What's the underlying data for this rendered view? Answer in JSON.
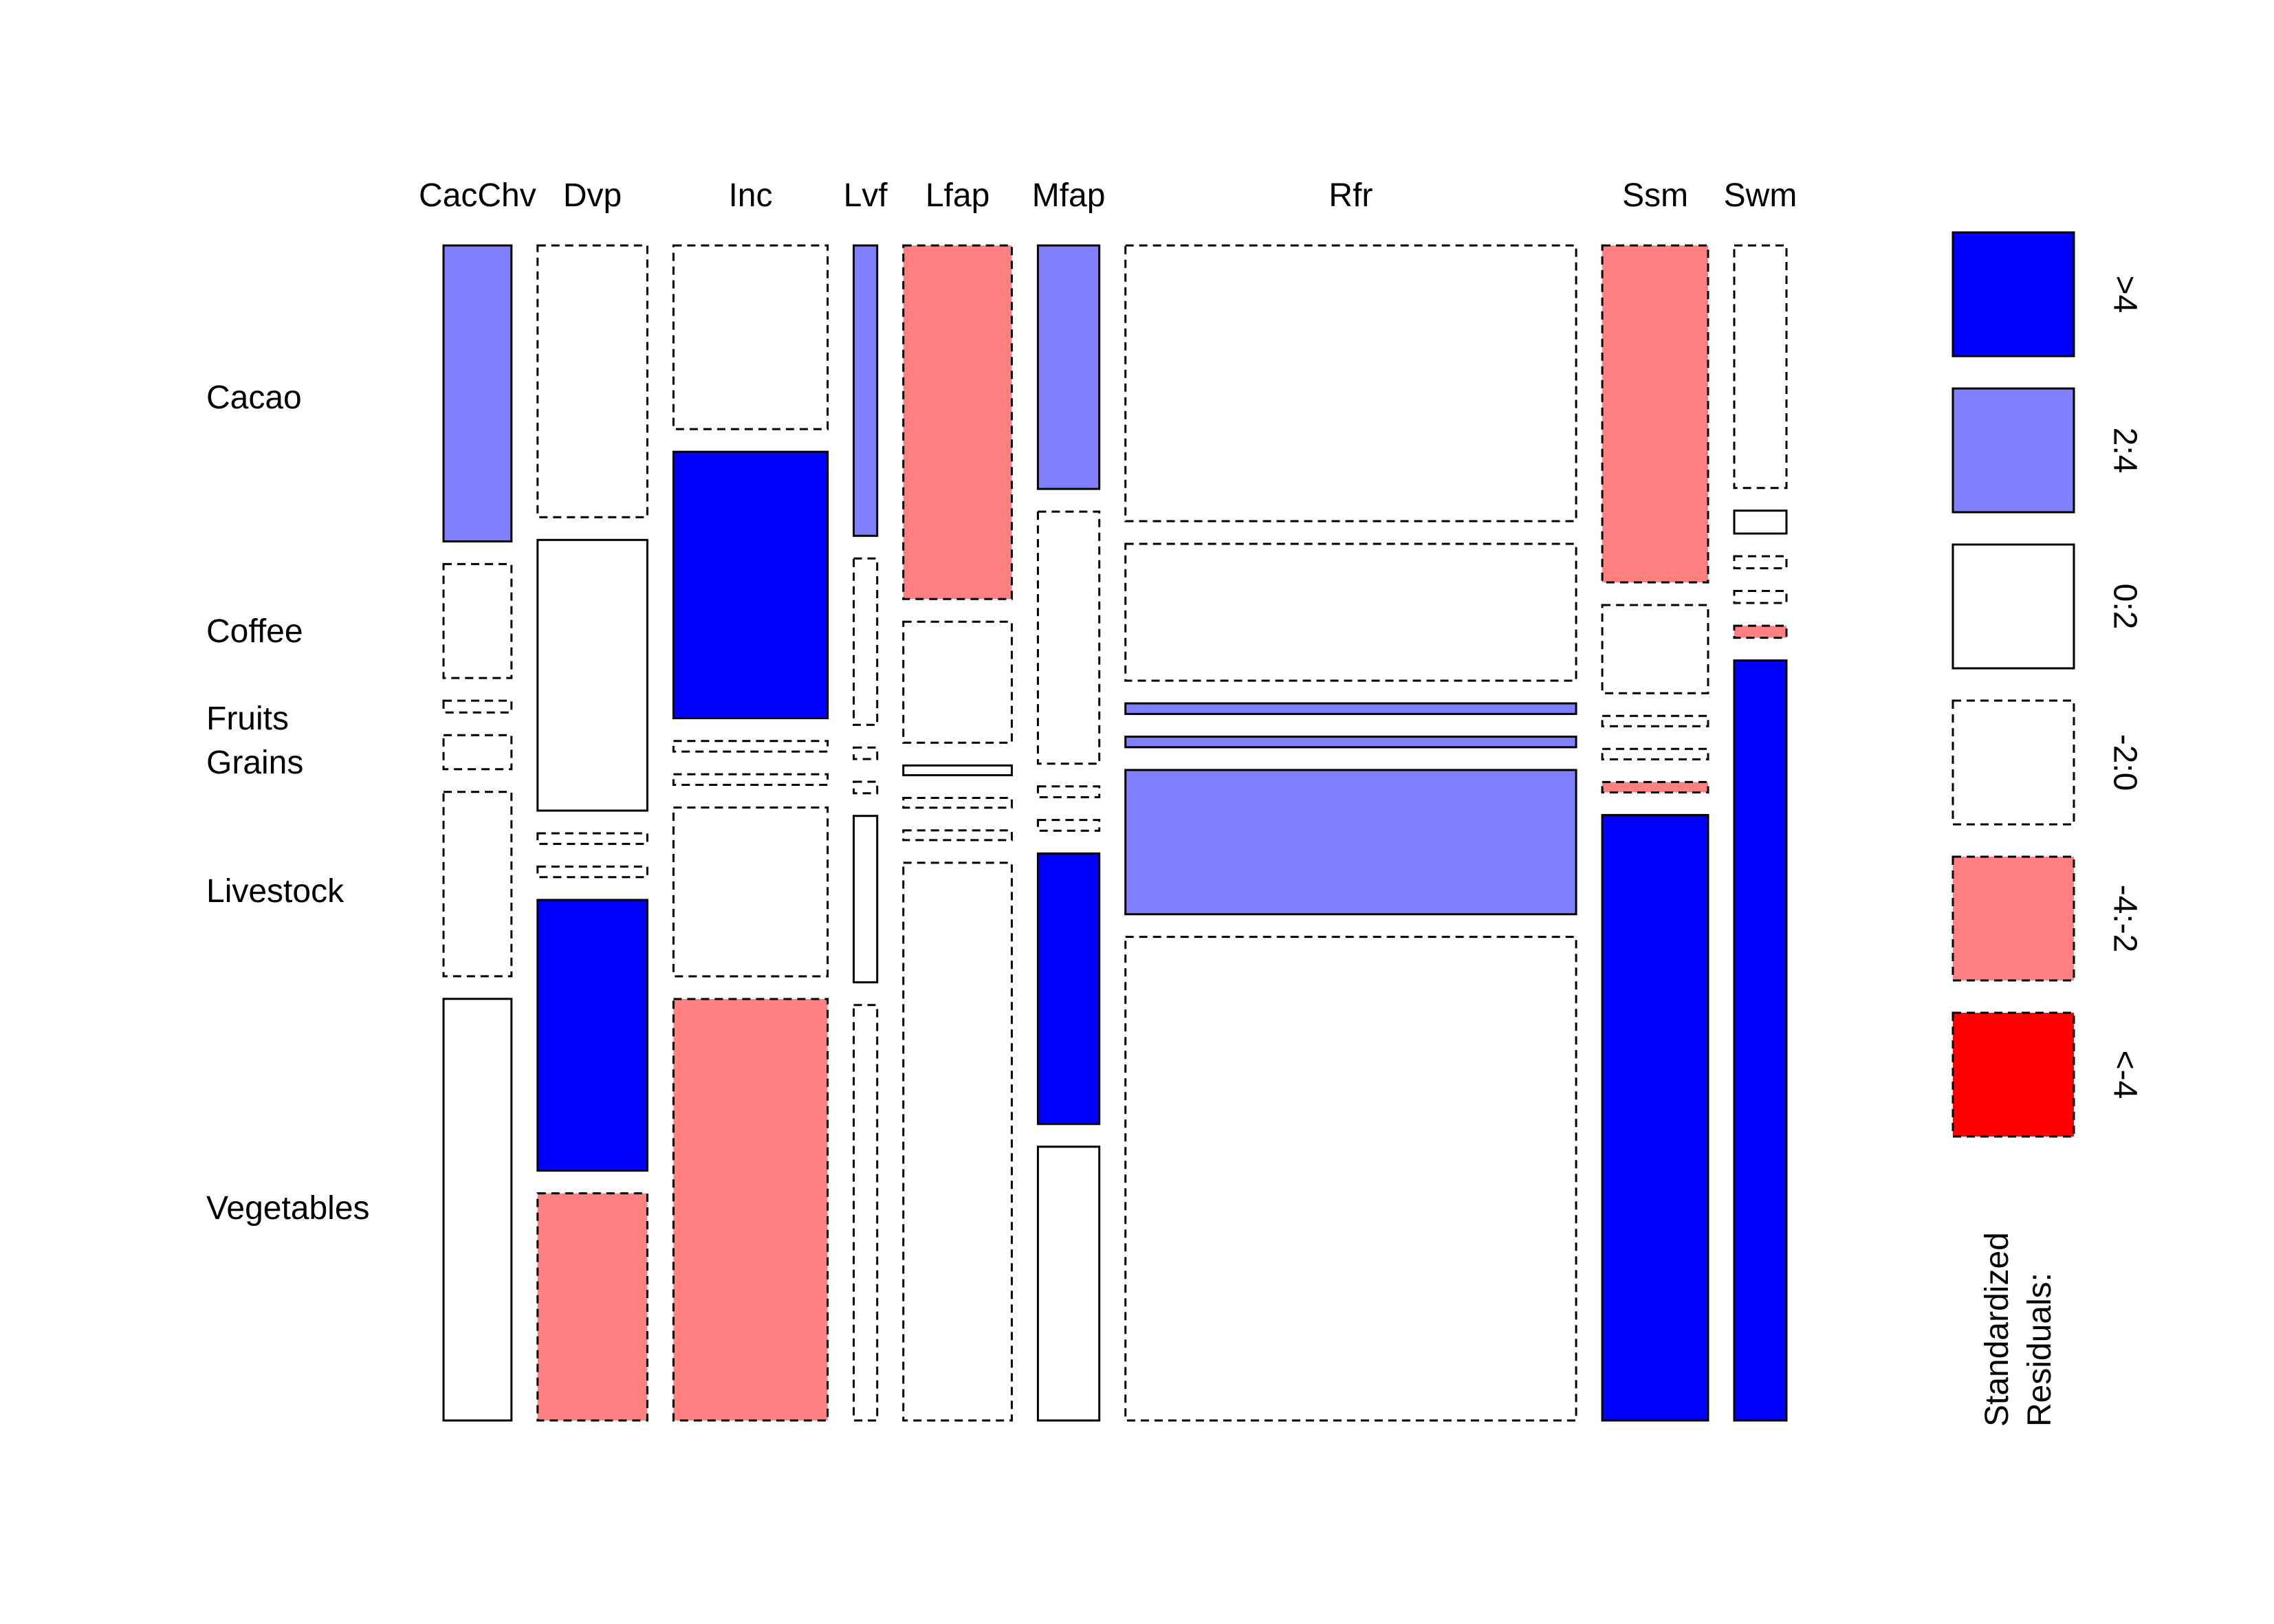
{
  "chart_data": {
    "type": "mosaic",
    "title": "",
    "columns": [
      "CacChv",
      "Dvp",
      "Inc",
      "Lvf",
      "Lfap",
      "Mfap",
      "Rfr",
      "Ssm",
      "Swm"
    ],
    "rows": [
      "Cacao",
      "Coffee",
      "Fruits",
      "Grains",
      "Livestock",
      "Vegetables"
    ],
    "column_proportions": [
      0.052,
      0.084,
      0.118,
      0.018,
      0.083,
      0.047,
      0.345,
      0.081,
      0.04
    ],
    "cell_proportions": [
      [
        0.252,
        0.097,
        0.01,
        0.029,
        0.157,
        0.359
      ],
      [
        0.256,
        0.255,
        0.01,
        0.01,
        0.255,
        0.214
      ],
      [
        0.173,
        0.251,
        0.01,
        0.01,
        0.159,
        0.397
      ],
      [
        0.253,
        0.145,
        0.01,
        0.01,
        0.145,
        0.362
      ],
      [
        0.362,
        0.124,
        0.01,
        0.01,
        0.01,
        0.571
      ],
      [
        0.225,
        0.233,
        0.01,
        0.01,
        0.25,
        0.253
      ],
      [
        0.26,
        0.129,
        0.01,
        0.01,
        0.136,
        0.456
      ],
      [
        0.325,
        0.085,
        0.01,
        0.01,
        0.01,
        0.584
      ],
      [
        0.201,
        0.019,
        0.01,
        0.01,
        0.01,
        0.63
      ]
    ],
    "residual_class": [
      [
        "2:4",
        "-2:0",
        "-2:0",
        "-2:0",
        "-2:0",
        "0:2"
      ],
      [
        "-2:0",
        "0:2",
        "-2:0",
        "-2:0",
        ">4",
        "-4:-2"
      ],
      [
        "-2:0",
        ">4",
        "-2:0",
        "-2:0",
        "-2:0",
        "-4:-2"
      ],
      [
        "2:4",
        "-2:0",
        "-2:0",
        "-2:0",
        "0:2",
        "-2:0"
      ],
      [
        "-4:-2",
        "-2:0",
        "0:2",
        "-2:0",
        "-2:0",
        "-2:0"
      ],
      [
        "2:4",
        "-2:0",
        "-2:0",
        "-2:0",
        ">4",
        "0:2"
      ],
      [
        "-2:0",
        "-2:0",
        "2:4",
        "2:4",
        "2:4",
        "-2:0"
      ],
      [
        "-4:-2",
        "-2:0",
        "-2:0",
        "-2:0",
        "-4:-2",
        ">4"
      ],
      [
        "-2:0",
        "0:2",
        "-2:0",
        "-2:0",
        "-4:-2",
        ">4"
      ]
    ],
    "legend": {
      "title_lines": [
        "Standardized",
        "Residuals:"
      ],
      "items": [
        {
          "label": ">4",
          "fill": "#0000FF",
          "dashed": false
        },
        {
          "label": "2:4",
          "fill": "#8080FF",
          "dashed": false
        },
        {
          "label": "0:2",
          "fill": "#FFFFFF",
          "dashed": false
        },
        {
          "label": "-2:0",
          "fill": "#FFFFFF",
          "dashed": true
        },
        {
          "label": "-4:-2",
          "fill": "#FF8080",
          "dashed": true
        },
        {
          "label": "<-4",
          "fill": "#FF0000",
          "dashed": true
        }
      ]
    },
    "residual_colors": {
      ">4": "#0000FF",
      "2:4": "#8080FF",
      "0:2": "#FFFFFF",
      "-2:0": "#FFFFFF",
      "-4:-2": "#FF8080",
      "<-4": "#FF0000"
    },
    "dashed_classes": [
      "-2:0",
      "-4:-2",
      "<-4"
    ]
  }
}
